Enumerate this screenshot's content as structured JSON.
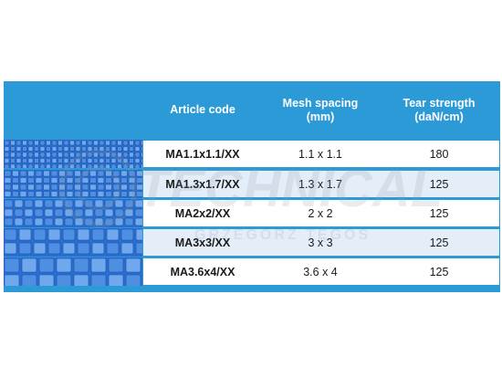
{
  "table": {
    "headers": [
      "",
      "Article code",
      "Mesh spacing\n(mm)",
      "Tear strength\n(daN/cm)"
    ],
    "rows": [
      {
        "code": "MA1.1x1.1/XX",
        "mesh": "1.1 x 1.1",
        "tear": "180"
      },
      {
        "code": "MA1.3x1.7/XX",
        "mesh": "1.3 x 1.7",
        "tear": "125"
      },
      {
        "code": "MA2x2/XX",
        "mesh": "2 x 2",
        "tear": "125"
      },
      {
        "code": "MA3x3/XX",
        "mesh": "3 x 3",
        "tear": "125"
      },
      {
        "code": "MA3.6x4/XX",
        "mesh": "3.6 x 4",
        "tear": "125"
      }
    ]
  },
  "watermark": {
    "brand": "TECHNICAL",
    "name": "GRZEGORZ TĘGOS"
  },
  "colors": {
    "header_bg": "#2d9ad8",
    "row_alt_bg": "#e4eef9",
    "mesh_blue": "#1f5fc4"
  }
}
